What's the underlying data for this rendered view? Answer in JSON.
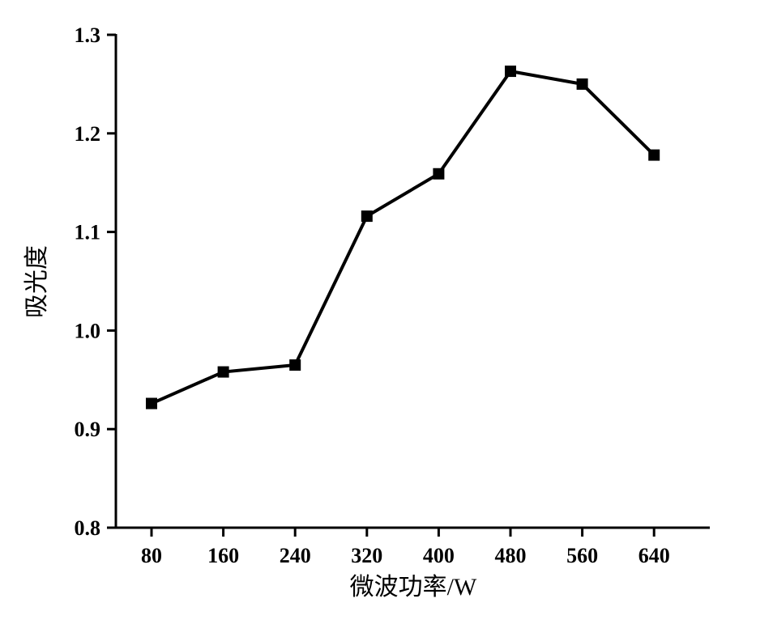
{
  "chart_data": {
    "type": "line",
    "title": "",
    "xlabel": "微波功率/W",
    "ylabel": "吸光度",
    "x": [
      80,
      160,
      240,
      320,
      400,
      480,
      560,
      640
    ],
    "x_tick_labels": [
      "80",
      "160",
      "240",
      "320",
      "400",
      "480",
      "560",
      "640"
    ],
    "series": [
      {
        "name": "吸光度",
        "values": [
          0.926,
          0.958,
          0.965,
          1.116,
          1.159,
          1.263,
          1.25,
          1.178
        ],
        "marker": "square",
        "color": "#000000"
      }
    ],
    "ylim": [
      0.8,
      1.3
    ],
    "y_ticks": [
      0.8,
      0.9,
      1.0,
      1.1,
      1.2,
      1.3
    ],
    "y_tick_labels": [
      "0.8",
      "0.9",
      "1.0",
      "1.1",
      "1.2",
      "1.3"
    ],
    "grid": false,
    "legend": "none"
  }
}
